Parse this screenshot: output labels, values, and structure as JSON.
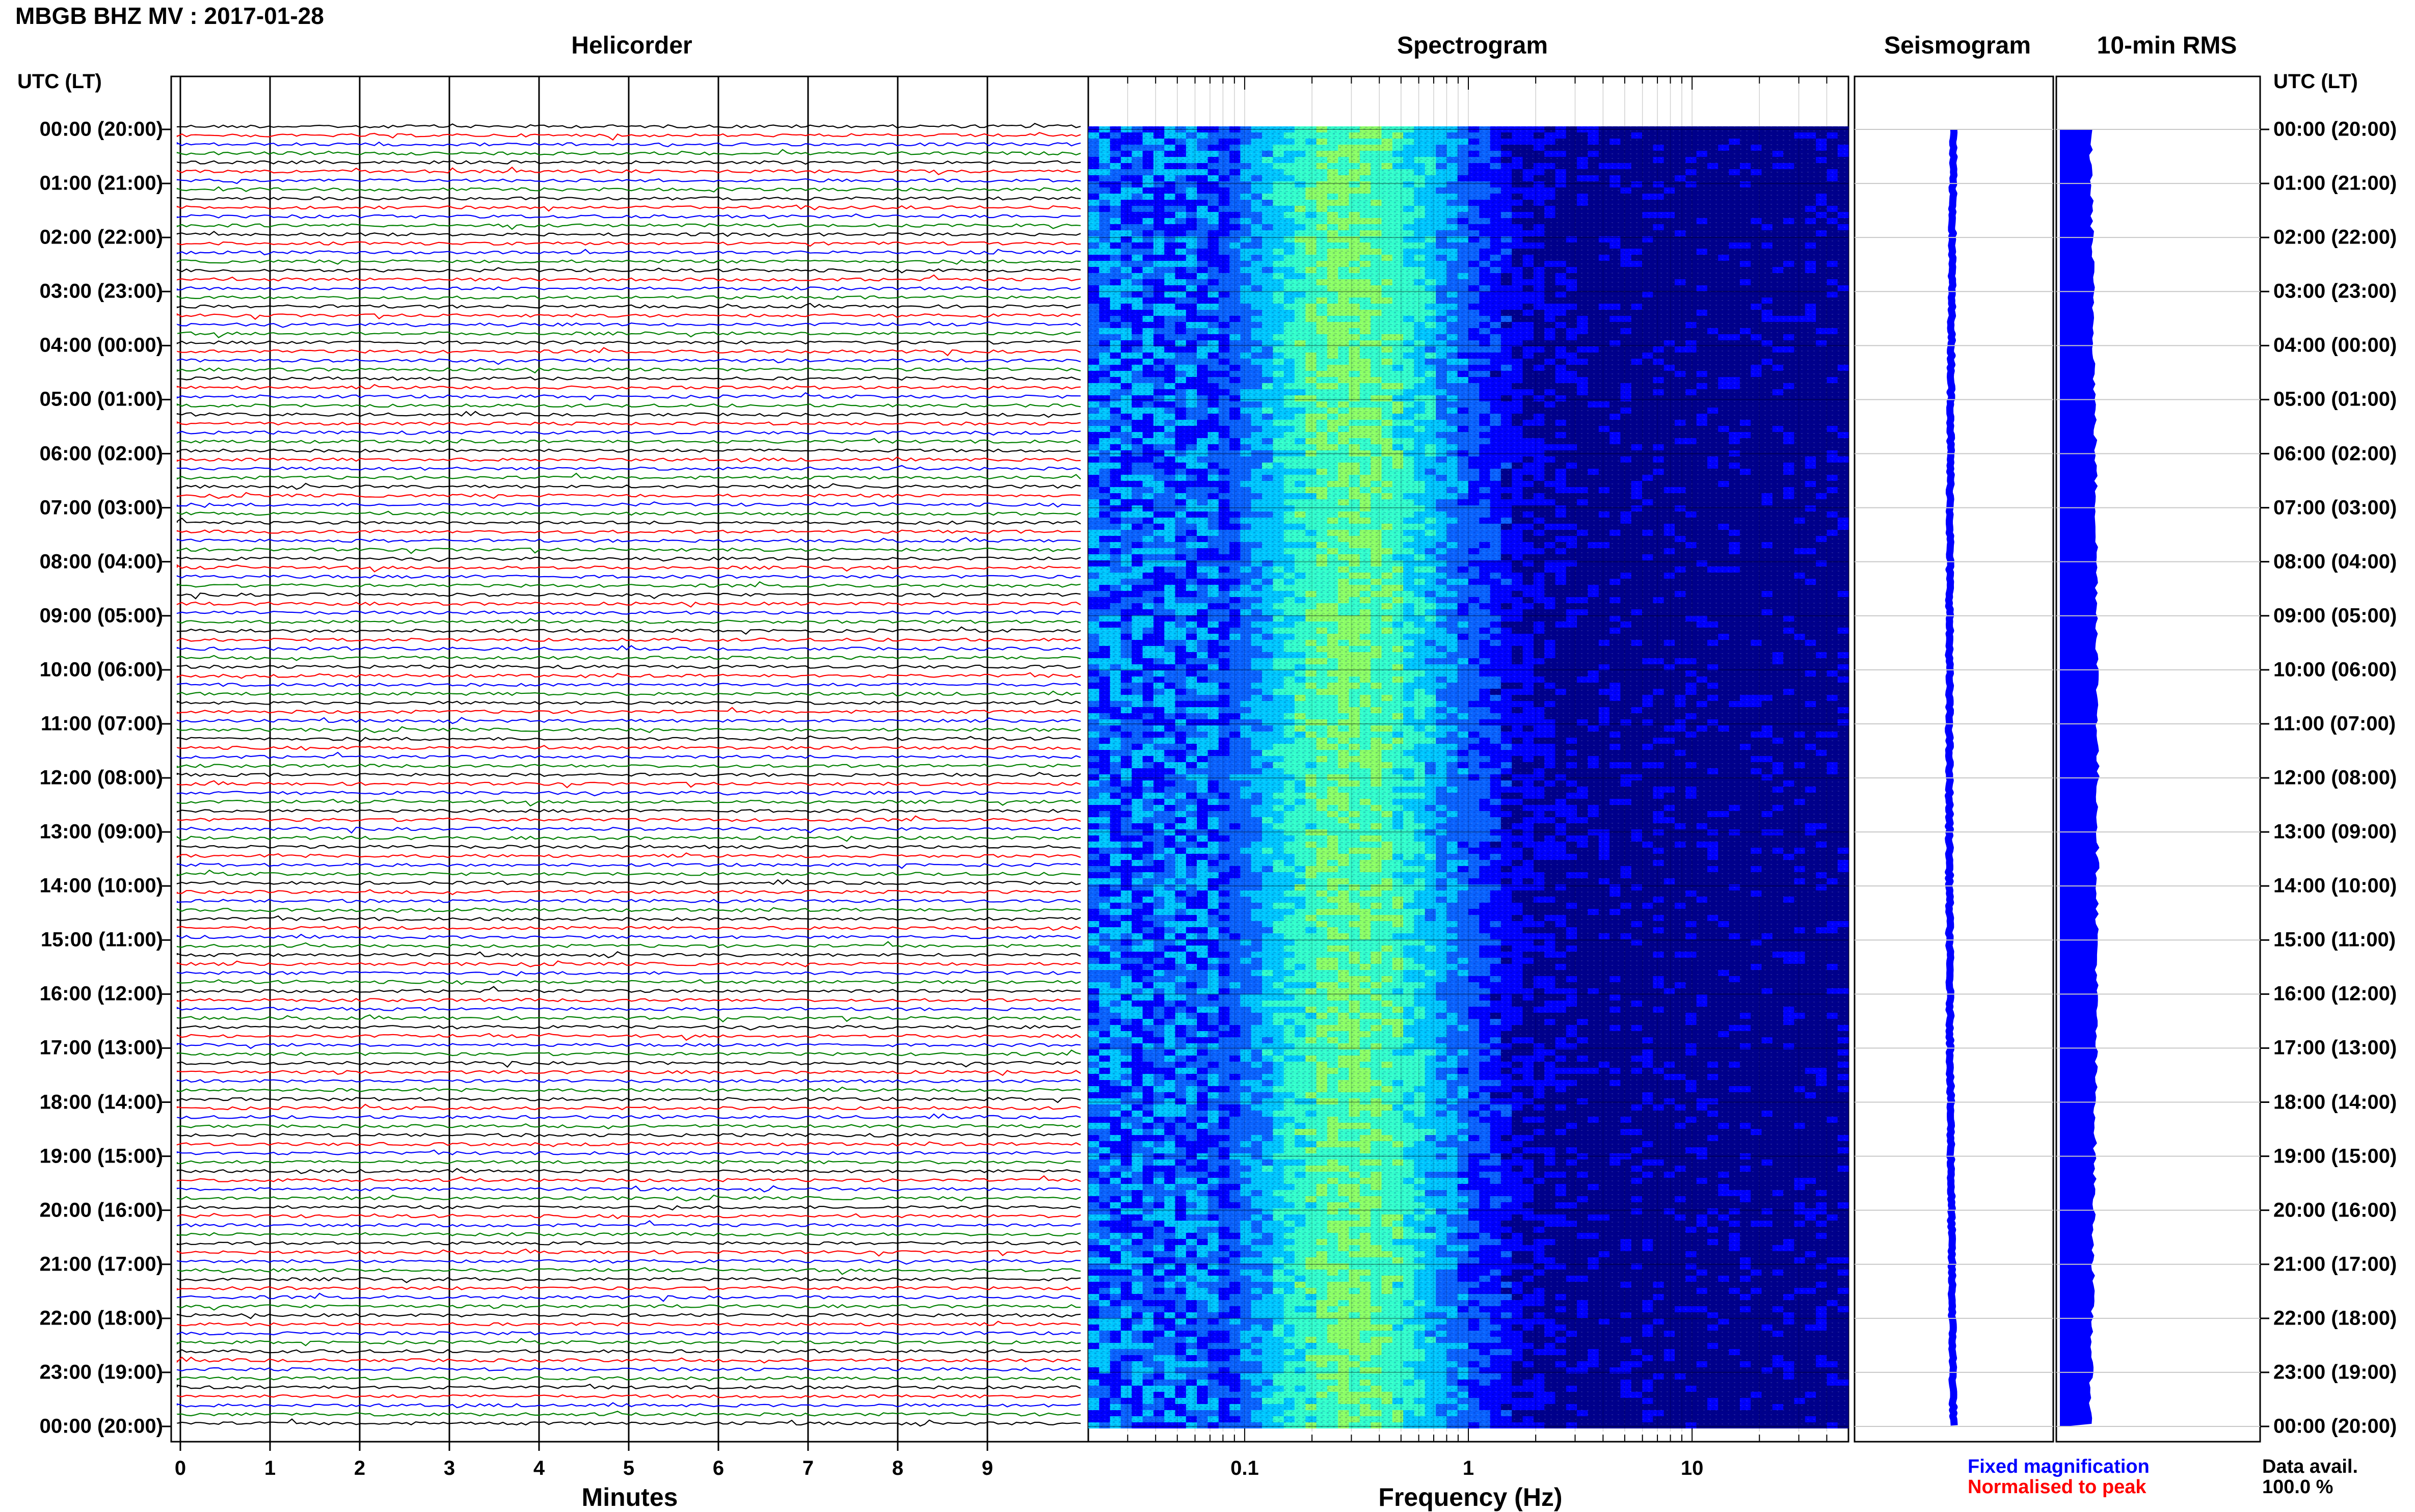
{
  "title": "MBGB BHZ MV : 2017-01-28",
  "panels": {
    "helicorder": "Helicorder",
    "spectrogram": "Spectrogram",
    "seismogram": "Seismogram",
    "rms": "10-min RMS"
  },
  "utc_header_left": "UTC (LT)",
  "utc_header_right": "UTC (LT)",
  "time_labels": [
    "00:00 (20:00)",
    "01:00 (21:00)",
    "02:00 (22:00)",
    "03:00 (23:00)",
    "04:00 (00:00)",
    "05:00 (01:00)",
    "06:00 (02:00)",
    "07:00 (03:00)",
    "08:00 (04:00)",
    "09:00 (05:00)",
    "10:00 (06:00)",
    "11:00 (07:00)",
    "12:00 (08:00)",
    "13:00 (09:00)",
    "14:00 (10:00)",
    "15:00 (11:00)",
    "16:00 (12:00)",
    "17:00 (13:00)",
    "18:00 (14:00)",
    "19:00 (15:00)",
    "20:00 (16:00)",
    "21:00 (17:00)",
    "22:00 (18:00)",
    "23:00 (19:00)",
    "00:00 (20:00)"
  ],
  "legend": {
    "fixed": "Fixed magnification",
    "normalised": "Normalised to peak",
    "fixed_color": "#0000ff",
    "normalised_color": "#ff0000"
  },
  "data_avail": {
    "label": "Data avail.",
    "value": "100.0 %"
  },
  "chart_data": [
    {
      "type": "line",
      "panel": "Helicorder",
      "xlabel": "Minutes",
      "x_ticks": [
        "0",
        "1",
        "2",
        "3",
        "4",
        "5",
        "6",
        "7",
        "8",
        "9"
      ],
      "xlim": [
        0,
        10
      ],
      "trace_colors": [
        "#000000",
        "#ff0000",
        "#0000ff",
        "#008000"
      ],
      "traces_per_hour": 6,
      "hours": 24
    },
    {
      "type": "heatmap",
      "panel": "Spectrogram",
      "xlabel": "Frequency (Hz)",
      "x_ticks": [
        "0.1",
        "1",
        "10"
      ],
      "x_scale": "log",
      "xlim": [
        0.02,
        50
      ],
      "colormap": [
        "#00008c",
        "#0000ff",
        "#0a64ff",
        "#00c8ff",
        "#33ffcc",
        "#8cff66"
      ],
      "peak_frequency_hz": 0.3
    },
    {
      "type": "line",
      "panel": "Seismogram",
      "trace_color": "#0000ff"
    },
    {
      "type": "area",
      "panel": "10-min RMS",
      "fill_color": "#0000ff"
    }
  ]
}
